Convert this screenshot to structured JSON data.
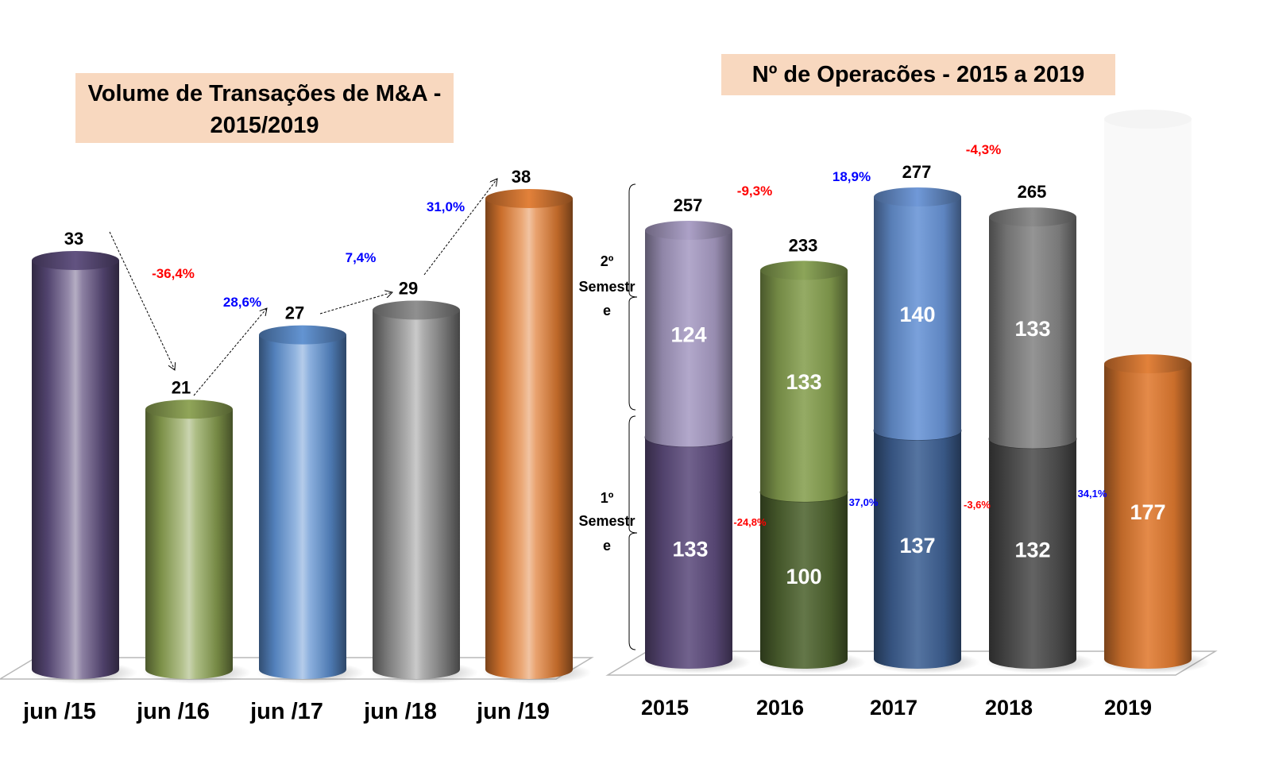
{
  "chart_data": [
    {
      "type": "bar",
      "title": "Volume de Transações de M&A - 2015/2019",
      "title_lines": [
        "Volume de Transações de M&A -",
        "2015/2019"
      ],
      "categories": [
        "jun /15",
        "jun /16",
        "jun /17",
        "jun /18",
        "jun /19"
      ],
      "values": [
        33,
        21,
        27,
        29,
        38
      ],
      "value_labels": [
        "33",
        "21",
        "27",
        "29",
        "38"
      ],
      "colors": [
        "#5a4a7a",
        "#8aa050",
        "#5b8ed0",
        "#8a8a8a",
        "#e07a30"
      ],
      "changes": [
        {
          "from": "jun /15",
          "to": "jun /16",
          "label": "-36,4%",
          "color": "#ff0000"
        },
        {
          "from": "jun /16",
          "to": "jun /17",
          "label": "28,6%",
          "color": "#0000ff"
        },
        {
          "from": "jun /17",
          "to": "jun /18",
          "label": "7,4%",
          "color": "#0000ff"
        },
        {
          "from": "jun /18",
          "to": "jun /19",
          "label": "31,0%",
          "color": "#0000ff"
        }
      ],
      "xlabel": "",
      "ylabel": "",
      "ylim": [
        0,
        40
      ],
      "grid": false,
      "style": "3d-cylinder"
    },
    {
      "type": "bar",
      "stacked": true,
      "title": "Nº de Operacões  - 2015 a 2019",
      "categories": [
        "2015",
        "2016",
        "2017",
        "2018",
        "2019"
      ],
      "series": [
        {
          "name": "1º Semestre",
          "values": [
            133,
            100,
            137,
            132,
            177
          ],
          "colors": [
            "#5e4d7e",
            "#4f6430",
            "#3e6194",
            "#4e4e4e",
            "#e07a30"
          ]
        },
        {
          "name": "2º Semestre",
          "values": [
            124,
            133,
            140,
            133,
            null
          ],
          "colors": [
            "#a89cc4",
            "#86a050",
            "#6894d6",
            "#858585",
            null
          ]
        }
      ],
      "totals": [
        257,
        233,
        277,
        265,
        null
      ],
      "total_labels": [
        "257",
        "233",
        "277",
        "265",
        ""
      ],
      "segment_labels": {
        "first_half": [
          "133",
          "100",
          "137",
          "132",
          "177"
        ],
        "second_half": [
          "124",
          "133",
          "140",
          "133",
          ""
        ]
      },
      "series_labels": {
        "second_half": [
          "2º",
          "Semestr",
          "e"
        ],
        "first_half": [
          "1º",
          "Semestr",
          "e"
        ]
      },
      "total_changes": [
        {
          "label": "-9,3%",
          "color": "#ff0000"
        },
        {
          "label": "18,9%",
          "color": "#0000ff"
        },
        {
          "label": "-4,3%",
          "color": "#ff0000"
        }
      ],
      "first_half_changes": [
        {
          "label": "-24,8%",
          "color": "#ff0000"
        },
        {
          "label": "37,0%",
          "color": "#0000ff"
        },
        {
          "label": "-3,6%",
          "color": "#ff0000"
        },
        {
          "label": "34,1%",
          "color": "#0000ff"
        }
      ],
      "ylim": [
        0,
        300
      ],
      "grid": false,
      "style": "3d-cylinder"
    }
  ]
}
